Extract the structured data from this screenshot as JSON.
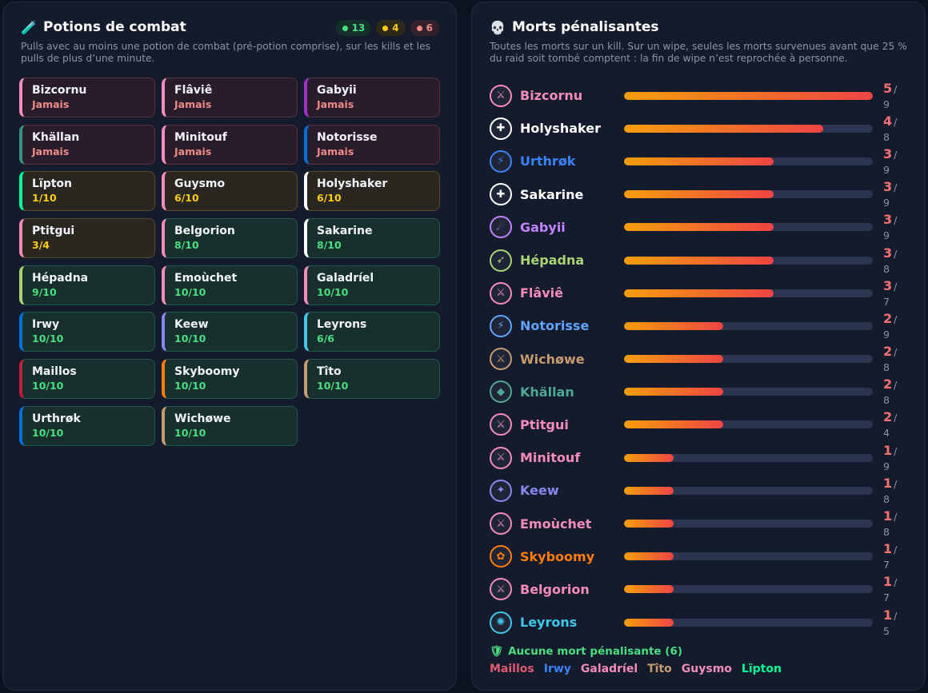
{
  "potions": {
    "title": "Potions de combat",
    "title_icon": "potion-icon",
    "counters": {
      "full": "13",
      "partial": "4",
      "never": "6"
    },
    "description": "Pulls avec au moins une potion de combat (pré-potion comprise), sur les kills et les pulls de plus d’une minute.",
    "players": [
      {
        "name": "Bizcornu",
        "status": "Jamais",
        "level": "never",
        "color": "#f48cba"
      },
      {
        "name": "Flâviê",
        "status": "Jamais",
        "level": "never",
        "color": "#f48cba"
      },
      {
        "name": "Gabyii",
        "status": "Jamais",
        "level": "never",
        "color": "#a330c9"
      },
      {
        "name": "Khällan",
        "status": "Jamais",
        "level": "never",
        "color": "#33937f"
      },
      {
        "name": "Minitouf",
        "status": "Jamais",
        "level": "never",
        "color": "#f48cba"
      },
      {
        "name": "Notorisse",
        "status": "Jamais",
        "level": "never",
        "color": "#0070dd"
      },
      {
        "name": "Lïpton",
        "status": "1/10",
        "level": "partial",
        "color": "#00ff98"
      },
      {
        "name": "Guysmo",
        "status": "6/10",
        "level": "partial",
        "color": "#f48cba"
      },
      {
        "name": "Holyshaker",
        "status": "6/10",
        "level": "partial",
        "color": "#ffffff"
      },
      {
        "name": "Ptitgui",
        "status": "3/4",
        "level": "partial",
        "color": "#f48cba"
      },
      {
        "name": "Belgorion",
        "status": "8/10",
        "level": "full",
        "color": "#f48cba"
      },
      {
        "name": "Sakarine",
        "status": "8/10",
        "level": "full",
        "color": "#ffffff"
      },
      {
        "name": "Hépadna",
        "status": "9/10",
        "level": "full",
        "color": "#aad372"
      },
      {
        "name": "Emoùchet",
        "status": "10/10",
        "level": "full",
        "color": "#f48cba"
      },
      {
        "name": "Galadríel",
        "status": "10/10",
        "level": "full",
        "color": "#f48cba"
      },
      {
        "name": "Irwy",
        "status": "10/10",
        "level": "full",
        "color": "#0070dd"
      },
      {
        "name": "Keew",
        "status": "10/10",
        "level": "full",
        "color": "#8788ee"
      },
      {
        "name": "Leyrons",
        "status": "6/6",
        "level": "full",
        "color": "#3fc7eb"
      },
      {
        "name": "Maillos",
        "status": "10/10",
        "level": "full",
        "color": "#c41e3a"
      },
      {
        "name": "Skyboomy",
        "status": "10/10",
        "level": "full",
        "color": "#ff7c0a"
      },
      {
        "name": "Tîto",
        "status": "10/10",
        "level": "full",
        "color": "#c69b6d"
      },
      {
        "name": "Urthrøk",
        "status": "10/10",
        "level": "full",
        "color": "#0070dd"
      },
      {
        "name": "Wichøwe",
        "status": "10/10",
        "level": "full",
        "color": "#c69b6d"
      }
    ]
  },
  "deaths": {
    "title": "Morts pénalisantes",
    "title_icon": "skull-icon",
    "description": "Toutes les morts sur un kill. Sur un wipe, seules les morts survenues avant que 25 % du raid soit tombé comptent : la fin de wipe n’est reprochée à personne.",
    "players": [
      {
        "name": "Bizcornu",
        "deaths": 5,
        "total": "/ 9",
        "color": "#f48cba",
        "icon": "paladin-icon"
      },
      {
        "name": "Holyshaker",
        "deaths": 4,
        "total": "/ 8",
        "color": "#ffffff",
        "icon": "priest-icon"
      },
      {
        "name": "Urthrøk",
        "deaths": 3,
        "total": "/ 9",
        "color": "#3b82f6",
        "icon": "shaman-icon"
      },
      {
        "name": "Sakarine",
        "deaths": 3,
        "total": "/ 9",
        "color": "#ffffff",
        "icon": "priest-icon"
      },
      {
        "name": "Gabyii",
        "deaths": 3,
        "total": "/ 9",
        "color": "#c084fc",
        "icon": "demon-hunter-icon"
      },
      {
        "name": "Hépadna",
        "deaths": 3,
        "total": "/ 8",
        "color": "#aad372",
        "icon": "hunter-icon"
      },
      {
        "name": "Flâviê",
        "deaths": 3,
        "total": "/ 7",
        "color": "#f48cba",
        "icon": "paladin-icon"
      },
      {
        "name": "Notorisse",
        "deaths": 2,
        "total": "/ 9",
        "color": "#60a5fa",
        "icon": "shaman-icon"
      },
      {
        "name": "Wichøwe",
        "deaths": 2,
        "total": "/ 8",
        "color": "#c69b6d",
        "icon": "warrior-icon"
      },
      {
        "name": "Khällan",
        "deaths": 2,
        "total": "/ 8",
        "color": "#4fa893",
        "icon": "evoker-icon"
      },
      {
        "name": "Ptitgui",
        "deaths": 2,
        "total": "/ 4",
        "color": "#f48cba",
        "icon": "paladin-icon"
      },
      {
        "name": "Minitouf",
        "deaths": 1,
        "total": "/ 9",
        "color": "#f48cba",
        "icon": "paladin-icon"
      },
      {
        "name": "Keew",
        "deaths": 1,
        "total": "/ 8",
        "color": "#8788ee",
        "icon": "warlock-icon"
      },
      {
        "name": "Emoùchet",
        "deaths": 1,
        "total": "/ 8",
        "color": "#f48cba",
        "icon": "paladin-icon"
      },
      {
        "name": "Skyboomy",
        "deaths": 1,
        "total": "/ 7",
        "color": "#ff7c0a",
        "icon": "druid-icon"
      },
      {
        "name": "Belgorion",
        "deaths": 1,
        "total": "/ 7",
        "color": "#f48cba",
        "icon": "paladin-icon"
      },
      {
        "name": "Leyrons",
        "deaths": 1,
        "total": "/ 5",
        "color": "#3fc7eb",
        "icon": "mage-icon"
      }
    ],
    "max": 5,
    "no_death": {
      "label": "Aucune mort pénalisante (6)",
      "icon": "shield-icon",
      "players": [
        {
          "name": "Maillos",
          "color": "#e05a72"
        },
        {
          "name": "Irwy",
          "color": "#3b82f6"
        },
        {
          "name": "Galadríel",
          "color": "#f48cba"
        },
        {
          "name": "Tîto",
          "color": "#c69b6d"
        },
        {
          "name": "Guysmo",
          "color": "#f48cba"
        },
        {
          "name": "Lïpton",
          "color": "#00ff98"
        }
      ]
    }
  }
}
